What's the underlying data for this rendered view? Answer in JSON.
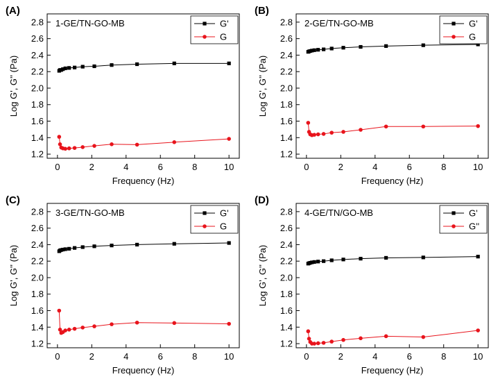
{
  "chart_data": [
    {
      "panel": "(A)",
      "type": "line",
      "title": "1-GE/TN-GO-MB",
      "xlabel": "Frequency (Hz)",
      "ylabel": "Log G', G'' (Pa)",
      "xlim": [
        -0.6,
        10.6
      ],
      "ylim": [
        1.15,
        2.9
      ],
      "xticks": [
        0,
        2,
        4,
        6,
        8,
        10
      ],
      "yticks": [
        1.2,
        1.4,
        1.6,
        1.8,
        2.0,
        2.2,
        2.4,
        2.6,
        2.8
      ],
      "legend": "top-right",
      "series": [
        {
          "name": "G'",
          "color": "#000000",
          "marker": "square",
          "x": [
            0.1,
            0.15,
            0.22,
            0.32,
            0.46,
            0.68,
            1.0,
            1.47,
            2.15,
            3.16,
            4.64,
            6.81,
            10.0
          ],
          "y": [
            2.21,
            2.22,
            2.22,
            2.23,
            2.24,
            2.245,
            2.25,
            2.26,
            2.265,
            2.28,
            2.29,
            2.3,
            2.3
          ]
        },
        {
          "name": "G",
          "color": "#e8141c",
          "marker": "circle",
          "x": [
            0.1,
            0.15,
            0.22,
            0.32,
            0.46,
            0.68,
            1.0,
            1.47,
            2.15,
            3.16,
            4.64,
            6.81,
            10.0
          ],
          "y": [
            1.41,
            1.32,
            1.28,
            1.27,
            1.265,
            1.27,
            1.275,
            1.285,
            1.3,
            1.32,
            1.315,
            1.345,
            1.385
          ]
        }
      ]
    },
    {
      "panel": "(B)",
      "type": "line",
      "title": "2-GE/TN-GO-MB",
      "xlabel": "Frequency (Hz)",
      "ylabel": "Log G', G'' (Pa)",
      "xlim": [
        -0.6,
        10.6
      ],
      "ylim": [
        1.15,
        2.9
      ],
      "xticks": [
        0,
        2,
        4,
        6,
        8,
        10
      ],
      "yticks": [
        1.2,
        1.4,
        1.6,
        1.8,
        2.0,
        2.2,
        2.4,
        2.6,
        2.8
      ],
      "legend": "top-right",
      "series": [
        {
          "name": "G'",
          "color": "#000000",
          "marker": "square",
          "x": [
            0.1,
            0.15,
            0.22,
            0.32,
            0.46,
            0.68,
            1.0,
            1.47,
            2.15,
            3.16,
            4.64,
            6.81,
            10.0
          ],
          "y": [
            2.44,
            2.445,
            2.45,
            2.455,
            2.46,
            2.465,
            2.47,
            2.48,
            2.49,
            2.5,
            2.51,
            2.52,
            2.53
          ]
        },
        {
          "name": "G",
          "color": "#e8141c",
          "marker": "circle",
          "x": [
            0.1,
            0.15,
            0.22,
            0.32,
            0.46,
            0.68,
            1.0,
            1.47,
            2.15,
            3.16,
            4.64,
            6.81,
            10.0
          ],
          "y": [
            1.58,
            1.47,
            1.44,
            1.43,
            1.435,
            1.44,
            1.445,
            1.46,
            1.47,
            1.495,
            1.535,
            1.535,
            1.54
          ]
        }
      ]
    },
    {
      "panel": "(C)",
      "type": "line",
      "title": "3-GE/TN-GO-MB",
      "xlabel": "Frequency (Hz)",
      "ylabel": "Log G', G'' (Pa)",
      "xlim": [
        -0.6,
        10.6
      ],
      "ylim": [
        1.15,
        2.9
      ],
      "xticks": [
        0,
        2,
        4,
        6,
        8,
        10
      ],
      "yticks": [
        1.2,
        1.4,
        1.6,
        1.8,
        2.0,
        2.2,
        2.4,
        2.6,
        2.8
      ],
      "legend": "top-right",
      "series": [
        {
          "name": "G'",
          "color": "#000000",
          "marker": "square",
          "x": [
            0.1,
            0.15,
            0.22,
            0.32,
            0.46,
            0.68,
            1.0,
            1.47,
            2.15,
            3.16,
            4.64,
            6.81,
            10.0
          ],
          "y": [
            2.32,
            2.33,
            2.335,
            2.34,
            2.345,
            2.35,
            2.36,
            2.37,
            2.38,
            2.39,
            2.4,
            2.41,
            2.42
          ]
        },
        {
          "name": "G",
          "color": "#e8141c",
          "marker": "circle",
          "x": [
            0.1,
            0.15,
            0.22,
            0.32,
            0.46,
            0.68,
            1.0,
            1.47,
            2.15,
            3.16,
            4.64,
            6.81,
            10.0
          ],
          "y": [
            1.6,
            1.37,
            1.33,
            1.34,
            1.36,
            1.37,
            1.38,
            1.395,
            1.41,
            1.435,
            1.455,
            1.45,
            1.44
          ]
        }
      ]
    },
    {
      "panel": "(D)",
      "type": "line",
      "title": "4-GE/TN/GO-MB",
      "xlabel": "Frequency (Hz)",
      "ylabel": "Log G', G'' (Pa)",
      "xlim": [
        -0.6,
        10.6
      ],
      "ylim": [
        1.15,
        2.9
      ],
      "xticks": [
        0,
        2,
        4,
        6,
        8,
        10
      ],
      "yticks": [
        1.2,
        1.4,
        1.6,
        1.8,
        2.0,
        2.2,
        2.4,
        2.6,
        2.8
      ],
      "legend": "top-right",
      "series": [
        {
          "name": "G'",
          "color": "#000000",
          "marker": "square",
          "x": [
            0.1,
            0.15,
            0.22,
            0.32,
            0.46,
            0.68,
            1.0,
            1.47,
            2.15,
            3.16,
            4.64,
            6.81,
            10.0
          ],
          "y": [
            2.17,
            2.175,
            2.18,
            2.185,
            2.19,
            2.195,
            2.2,
            2.21,
            2.22,
            2.23,
            2.24,
            2.245,
            2.255
          ]
        },
        {
          "name": "G''",
          "color": "#e8141c",
          "marker": "circle",
          "x": [
            0.1,
            0.15,
            0.22,
            0.32,
            0.46,
            0.68,
            1.0,
            1.47,
            2.15,
            3.16,
            4.64,
            6.81,
            10.0
          ],
          "y": [
            1.35,
            1.26,
            1.22,
            1.2,
            1.2,
            1.205,
            1.21,
            1.225,
            1.245,
            1.265,
            1.29,
            1.28,
            1.36
          ]
        }
      ]
    }
  ]
}
